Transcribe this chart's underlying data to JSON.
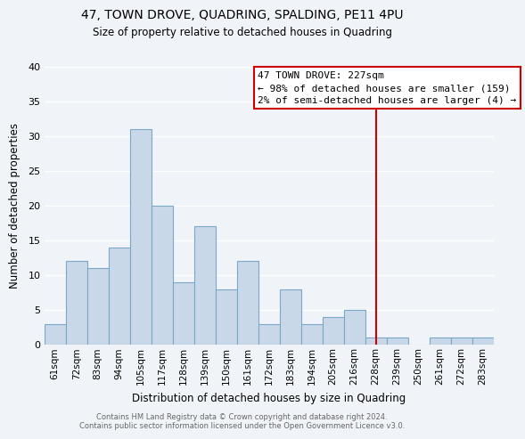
{
  "title": "47, TOWN DROVE, QUADRING, SPALDING, PE11 4PU",
  "subtitle": "Size of property relative to detached houses in Quadring",
  "xlabel": "Distribution of detached houses by size in Quadring",
  "ylabel": "Number of detached properties",
  "bar_color": "#c8d8e8",
  "bar_edge_color": "#7aa8c8",
  "background_color": "#f0f4f8",
  "grid_color": "#ffffff",
  "categories": [
    "61sqm",
    "72sqm",
    "83sqm",
    "94sqm",
    "105sqm",
    "117sqm",
    "128sqm",
    "139sqm",
    "150sqm",
    "161sqm",
    "172sqm",
    "183sqm",
    "194sqm",
    "205sqm",
    "216sqm",
    "228sqm",
    "239sqm",
    "250sqm",
    "261sqm",
    "272sqm",
    "283sqm"
  ],
  "values": [
    3,
    12,
    11,
    14,
    31,
    20,
    9,
    17,
    8,
    12,
    3,
    8,
    3,
    4,
    5,
    1,
    1,
    0,
    1,
    1,
    1
  ],
  "ylim": [
    0,
    40
  ],
  "yticks": [
    0,
    5,
    10,
    15,
    20,
    25,
    30,
    35,
    40
  ],
  "vline_x": 15,
  "vline_color": "#cc0000",
  "annotation_title": "47 TOWN DROVE: 227sqm",
  "annotation_line1": "← 98% of detached houses are smaller (159)",
  "annotation_line2": "2% of semi-detached houses are larger (4) →",
  "annotation_box_facecolor": "#ffffff",
  "annotation_box_edgecolor": "#cc0000",
  "footer1": "Contains HM Land Registry data © Crown copyright and database right 2024.",
  "footer2": "Contains public sector information licensed under the Open Government Licence v3.0."
}
